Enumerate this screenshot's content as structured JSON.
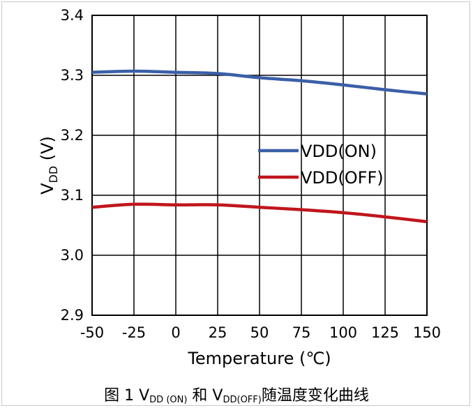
{
  "chart_data": {
    "type": "line",
    "xlabel": "Temperature (℃)",
    "ylabel": {
      "base": "V",
      "sub": "DD",
      "unit": " (V)"
    },
    "xlim": [
      -50,
      150
    ],
    "ylim": [
      2.9,
      3.4
    ],
    "xticks": [
      -50,
      -25,
      0,
      25,
      50,
      75,
      100,
      125,
      150
    ],
    "yticks": [
      "2.9",
      "3.0",
      "3.1",
      "3.2",
      "3.3",
      "3.4"
    ],
    "grid": true,
    "legend_position": "center-right",
    "series": [
      {
        "name": "VDD(ON)",
        "color": "#3b5fa8",
        "x": [
          -50,
          -25,
          0,
          25,
          50,
          75,
          100,
          125,
          150
        ],
        "values": [
          3.305,
          3.307,
          3.305,
          3.303,
          3.296,
          3.291,
          3.284,
          3.276,
          3.269
        ]
      },
      {
        "name": "VDD(OFF)",
        "color": "#c0161c",
        "x": [
          -50,
          -25,
          0,
          25,
          50,
          75,
          100,
          125,
          150
        ],
        "values": [
          3.08,
          3.085,
          3.084,
          3.084,
          3.08,
          3.076,
          3.071,
          3.064,
          3.056
        ]
      }
    ]
  },
  "caption": {
    "prefix": "图 1 V",
    "sub1": "DD (ON)",
    "mid": " 和 V",
    "sub2": "DD(OFF)",
    "suffix": "随温度变化曲线"
  }
}
